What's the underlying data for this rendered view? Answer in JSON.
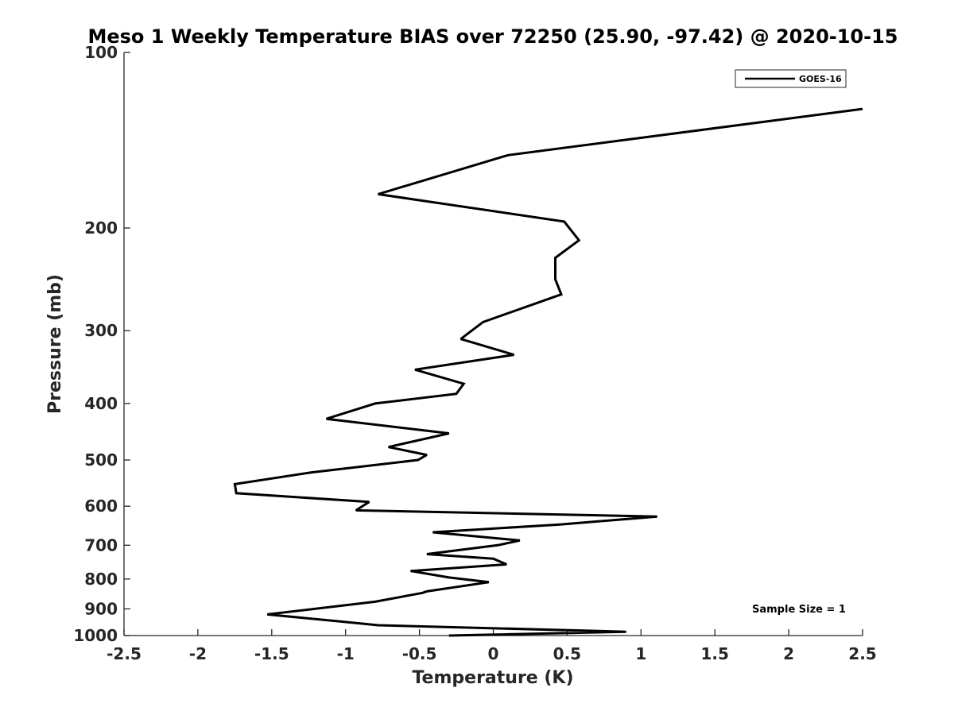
{
  "chart_data": {
    "type": "line",
    "title": "Meso 1 Weekly Temperature BIAS over 72250 (25.90, -97.42) @ 2020-10-15",
    "xlabel": "Temperature (K)",
    "ylabel": "Pressure (mb)",
    "xlim": [
      -2.5,
      2.5
    ],
    "ylim": [
      100,
      1000
    ],
    "y_scale": "log",
    "y_reversed": true,
    "xticks": [
      -2.5,
      -2,
      -1.5,
      -1,
      -0.5,
      0,
      0.5,
      1,
      1.5,
      2,
      2.5
    ],
    "xtick_labels": [
      "-2.5",
      "-2",
      "-1.5",
      "-1",
      "-0.5",
      "0",
      "0.5",
      "1",
      "1.5",
      "2",
      "2.5"
    ],
    "yticks": [
      100,
      200,
      300,
      400,
      500,
      600,
      700,
      800,
      900,
      1000
    ],
    "ytick_labels": [
      "100",
      "200",
      "300",
      "400",
      "500",
      "600",
      "700",
      "800",
      "900",
      "1000"
    ],
    "grid": false,
    "legend_position": "top-right",
    "annotations": [
      "Sample Size = 1"
    ],
    "series": [
      {
        "name": "GOES-16",
        "color": "#000000",
        "points": [
          [
            2.5,
            125
          ],
          [
            0.1,
            150
          ],
          [
            -0.78,
            175
          ],
          [
            0.48,
            195
          ],
          [
            0.58,
            210
          ],
          [
            0.42,
            225
          ],
          [
            0.42,
            245
          ],
          [
            0.46,
            260
          ],
          [
            -0.07,
            290
          ],
          [
            -0.22,
            310
          ],
          [
            0.14,
            330
          ],
          [
            -0.53,
            350
          ],
          [
            -0.2,
            370
          ],
          [
            -0.25,
            385
          ],
          [
            -0.8,
            400
          ],
          [
            -1.13,
            425
          ],
          [
            -0.3,
            450
          ],
          [
            -0.71,
            475
          ],
          [
            -0.45,
            490
          ],
          [
            -0.51,
            500
          ],
          [
            -1.23,
            525
          ],
          [
            -1.75,
            550
          ],
          [
            -1.74,
            570
          ],
          [
            -0.84,
            590
          ],
          [
            -0.93,
            610
          ],
          [
            1.11,
            625
          ],
          [
            0.45,
            645
          ],
          [
            -0.41,
            665
          ],
          [
            0.18,
            687
          ],
          [
            0.03,
            700
          ],
          [
            -0.45,
            725
          ],
          [
            0,
            738
          ],
          [
            0.09,
            755
          ],
          [
            -0.56,
            775
          ],
          [
            -0.3,
            795
          ],
          [
            -0.03,
            810
          ],
          [
            -0.45,
            840
          ],
          [
            -0.48,
            845
          ],
          [
            -0.8,
            875
          ],
          [
            -1.53,
            920
          ],
          [
            -1.05,
            945
          ],
          [
            -0.78,
            960
          ],
          [
            0.9,
            985
          ],
          [
            -0.3,
            1000
          ]
        ]
      }
    ]
  }
}
